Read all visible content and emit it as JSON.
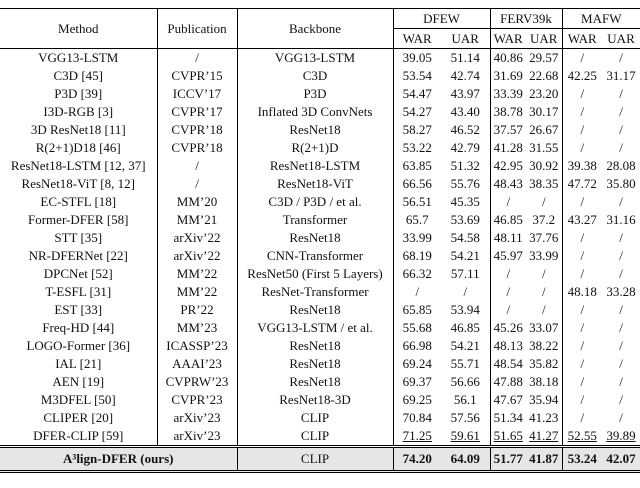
{
  "table": {
    "header": {
      "columns": [
        "Method",
        "Publication",
        "Backbone"
      ],
      "groups": [
        {
          "name": "DFEW",
          "sub": [
            "WAR",
            "UAR"
          ]
        },
        {
          "name": "FERV39k",
          "sub": [
            "WAR",
            "UAR"
          ]
        },
        {
          "name": "MAFW",
          "sub": [
            "WAR",
            "UAR"
          ]
        }
      ]
    },
    "rows": [
      [
        "VGG13-LSTM",
        "/",
        "VGG13-LSTM",
        "39.05",
        "51.14",
        "40.86",
        "29.57",
        "/",
        "/"
      ],
      [
        "C3D [45]",
        "CVPR’15",
        "C3D",
        "53.54",
        "42.74",
        "31.69",
        "22.68",
        "42.25",
        "31.17"
      ],
      [
        "P3D [39]",
        "ICCV’17",
        "P3D",
        "54.47",
        "43.97",
        "33.39",
        "23.20",
        "/",
        "/"
      ],
      [
        "I3D-RGB [3]",
        "CVPR’17",
        "Inflated 3D ConvNets",
        "54.27",
        "43.40",
        "38.78",
        "30.17",
        "/",
        "/"
      ],
      [
        "3D ResNet18 [11]",
        "CVPR’18",
        "ResNet18",
        "58.27",
        "46.52",
        "37.57",
        "26.67",
        "/",
        "/"
      ],
      [
        "R(2+1)D18 [46]",
        "CVPR’18",
        "R(2+1)D",
        "53.22",
        "42.79",
        "41.28",
        "31.55",
        "/",
        "/"
      ],
      [
        "ResNet18-LSTM [12, 37]",
        "/",
        "ResNet18-LSTM",
        "63.85",
        "51.32",
        "42.95",
        "30.92",
        "39.38",
        "28.08"
      ],
      [
        "ResNet18-ViT [8, 12]",
        "/",
        "ResNet18-ViT",
        "66.56",
        "55.76",
        "48.43",
        "38.35",
        "47.72",
        "35.80"
      ],
      [
        "EC-STFL [18]",
        "MM’20",
        "C3D / P3D / et al.",
        "56.51",
        "45.35",
        "/",
        "/",
        "/",
        "/"
      ],
      [
        "Former-DFER [58]",
        "MM’21",
        "Transformer",
        "65.7",
        "53.69",
        "46.85",
        "37.2",
        "43.27",
        "31.16"
      ],
      [
        "STT [35]",
        "arXiv’22",
        "ResNet18",
        "33.99",
        "54.58",
        "48.11",
        "37.76",
        "/",
        "/"
      ],
      [
        "NR-DFERNet [22]",
        "arXiv’22",
        "CNN-Transformer",
        "68.19",
        "54.21",
        "45.97",
        "33.99",
        "/",
        "/"
      ],
      [
        "DPCNet [52]",
        "MM’22",
        "ResNet50 (First 5 Layers)",
        "66.32",
        "57.11",
        "/",
        "/",
        "/",
        "/"
      ],
      [
        "T-ESFL [31]",
        "MM’22",
        "ResNet-Transformer",
        "/",
        "/",
        "/",
        "/",
        "48.18",
        "33.28"
      ],
      [
        "EST [33]",
        "PR’22",
        "ResNet18",
        "65.85",
        "53.94",
        "/",
        "/",
        "/",
        "/"
      ],
      [
        "Freq-HD [44]",
        "MM’23",
        "VGG13-LSTM / et al.",
        "55.68",
        "46.85",
        "45.26",
        "33.07",
        "/",
        "/"
      ],
      [
        "LOGO-Former [36]",
        "ICASSP’23",
        "ResNet18",
        "66.98",
        "54.21",
        "48.13",
        "38.22",
        "/",
        "/"
      ],
      [
        "IAL [21]",
        "AAAI’23",
        "ResNet18",
        "69.24",
        "55.71",
        "48.54",
        "35.82",
        "/",
        "/"
      ],
      [
        "AEN [19]",
        "CVPRW’23",
        "ResNet18",
        "69.37",
        "56.66",
        "47.88",
        "38.18",
        "/",
        "/"
      ],
      [
        "M3DFEL [50]",
        "CVPR’23",
        "ResNet18-3D",
        "69.25",
        "56.1",
        "47.67",
        "35.94",
        "/",
        "/"
      ],
      [
        "CLIPER [20]",
        "arXiv’23",
        "CLIP",
        "70.84",
        "57.56",
        "51.34",
        "41.23",
        "/",
        "/"
      ],
      [
        "DFER-CLIP [59]",
        "arXiv’23",
        "CLIP",
        "71.25",
        "59.61",
        "51.65",
        "41.27",
        "52.55",
        "39.89"
      ]
    ],
    "ours": {
      "method": "A³lign-DFER (ours)",
      "backbone": "CLIP",
      "values": [
        "74.20",
        "64.09",
        "51.77",
        "41.87",
        "53.24",
        "42.07"
      ]
    }
  }
}
